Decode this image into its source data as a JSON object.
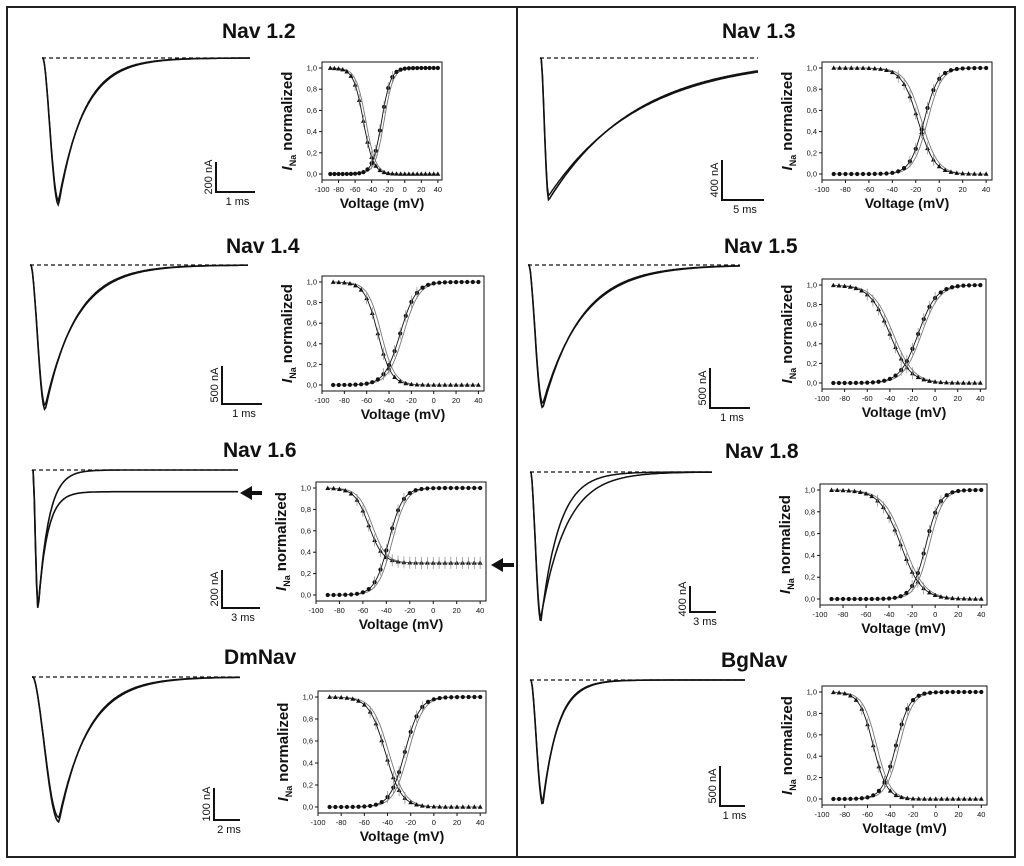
{
  "figure": {
    "y_tick_labels": [
      "0,0",
      "0,2",
      "0,4",
      "0,6",
      "0,8",
      "1,0"
    ],
    "x_tick_labels": [
      "-100",
      "-80",
      "-60",
      "-40",
      "-20",
      "0",
      "20",
      "40"
    ],
    "ylabel_symbol": "I",
    "ylabel_subscript": "Na",
    "ylabel_rest": "normalized",
    "xlabel": "Voltage (mV)"
  },
  "panels": [
    {
      "id": "nav12",
      "title": "Nav 1.2",
      "scale_current": "200 nA",
      "scale_time": "1 ms"
    },
    {
      "id": "nav13",
      "title": "Nav 1.3",
      "scale_current": "400 nA",
      "scale_time": "5 ms"
    },
    {
      "id": "nav14",
      "title": "Nav 1.4",
      "scale_current": "500 nA",
      "scale_time": "1 ms"
    },
    {
      "id": "nav15",
      "title": "Nav 1.5",
      "scale_current": "500 nA",
      "scale_time": "1 ms"
    },
    {
      "id": "nav16",
      "title": "Nav 1.6",
      "scale_current": "200 nA",
      "scale_time": "3 ms",
      "arrows": true
    },
    {
      "id": "nav18",
      "title": "Nav 1.8",
      "scale_current": "400 nA",
      "scale_time": "3 ms"
    },
    {
      "id": "dmnav",
      "title": "DmNav",
      "scale_current": "100 nA",
      "scale_time": "2 ms"
    },
    {
      "id": "bgnav",
      "title": "BgNav",
      "scale_current": "500 nA",
      "scale_time": "1 ms"
    }
  ],
  "chart_data": [
    {
      "type": "line",
      "panel": "Nav 1.2",
      "xlabel": "Voltage (mV)",
      "ylabel": "INa normalized",
      "xlim": [
        -100,
        45
      ],
      "ylim": [
        0,
        1
      ],
      "series": [
        {
          "marker": "triangle",
          "kind": "inactivation",
          "v_half": -50,
          "k": 6.0,
          "plateau": 0
        },
        {
          "marker": "circle",
          "kind": "activation",
          "v_half": -28,
          "k": 5.5
        }
      ]
    },
    {
      "type": "line",
      "panel": "Nav 1.3",
      "xlabel": "Voltage (mV)",
      "ylabel": "INa normalized",
      "xlim": [
        -100,
        45
      ],
      "ylim": [
        0,
        1
      ],
      "series": [
        {
          "marker": "triangle",
          "kind": "inactivation",
          "v_half": -18,
          "k": 7.0,
          "plateau": 0
        },
        {
          "marker": "circle",
          "kind": "activation",
          "v_half": -13,
          "k": 6.0
        }
      ]
    },
    {
      "type": "line",
      "panel": "Nav 1.4",
      "xlabel": "Voltage (mV)",
      "ylabel": "INa normalized",
      "xlim": [
        -100,
        45
      ],
      "ylim": [
        0,
        1
      ],
      "series": [
        {
          "marker": "triangle",
          "kind": "inactivation",
          "v_half": -50,
          "k": 6.0,
          "plateau": 0
        },
        {
          "marker": "circle",
          "kind": "activation",
          "v_half": -30,
          "k": 7.0
        }
      ]
    },
    {
      "type": "line",
      "panel": "Nav 1.5",
      "xlabel": "Voltage (mV)",
      "ylabel": "INa normalized",
      "xlim": [
        -100,
        45
      ],
      "ylim": [
        0,
        1
      ],
      "series": [
        {
          "marker": "triangle",
          "kind": "inactivation",
          "v_half": -40,
          "k": 9.0,
          "plateau": 0
        },
        {
          "marker": "circle",
          "kind": "activation",
          "v_half": -15,
          "k": 8.0
        }
      ]
    },
    {
      "type": "line",
      "panel": "Nav 1.6",
      "xlabel": "Voltage (mV)",
      "ylabel": "INa normalized",
      "xlim": [
        -100,
        45
      ],
      "ylim": [
        0,
        1
      ],
      "series": [
        {
          "marker": "triangle",
          "kind": "inactivation",
          "v_half": -55,
          "k": 6.0,
          "plateau": 0.3
        },
        {
          "marker": "circle",
          "kind": "activation",
          "v_half": -38,
          "k": 6.0
        }
      ]
    },
    {
      "type": "line",
      "panel": "Nav 1.8",
      "xlabel": "Voltage (mV)",
      "ylabel": "INa normalized",
      "xlim": [
        -100,
        45
      ],
      "ylim": [
        0,
        1
      ],
      "series": [
        {
          "marker": "triangle",
          "kind": "inactivation",
          "v_half": -30,
          "k": 9.0,
          "plateau": 0
        },
        {
          "marker": "circle",
          "kind": "activation",
          "v_half": -8,
          "k": 6.0
        }
      ]
    },
    {
      "type": "line",
      "panel": "DmNav",
      "xlabel": "Voltage (mV)",
      "ylabel": "INa normalized",
      "xlim": [
        -100,
        45
      ],
      "ylim": [
        0,
        1
      ],
      "series": [
        {
          "marker": "triangle",
          "kind": "inactivation",
          "v_half": -42,
          "k": 7.0,
          "plateau": 0
        },
        {
          "marker": "circle",
          "kind": "activation",
          "v_half": -25,
          "k": 6.5
        }
      ]
    },
    {
      "type": "line",
      "panel": "BgNav",
      "xlabel": "Voltage (mV)",
      "ylabel": "INa normalized",
      "xlim": [
        -100,
        45
      ],
      "ylim": [
        0,
        1
      ],
      "series": [
        {
          "marker": "triangle",
          "kind": "inactivation",
          "v_half": -55,
          "k": 6.0,
          "plateau": 0
        },
        {
          "marker": "circle",
          "kind": "activation",
          "v_half": -35,
          "k": 6.0
        }
      ]
    }
  ]
}
